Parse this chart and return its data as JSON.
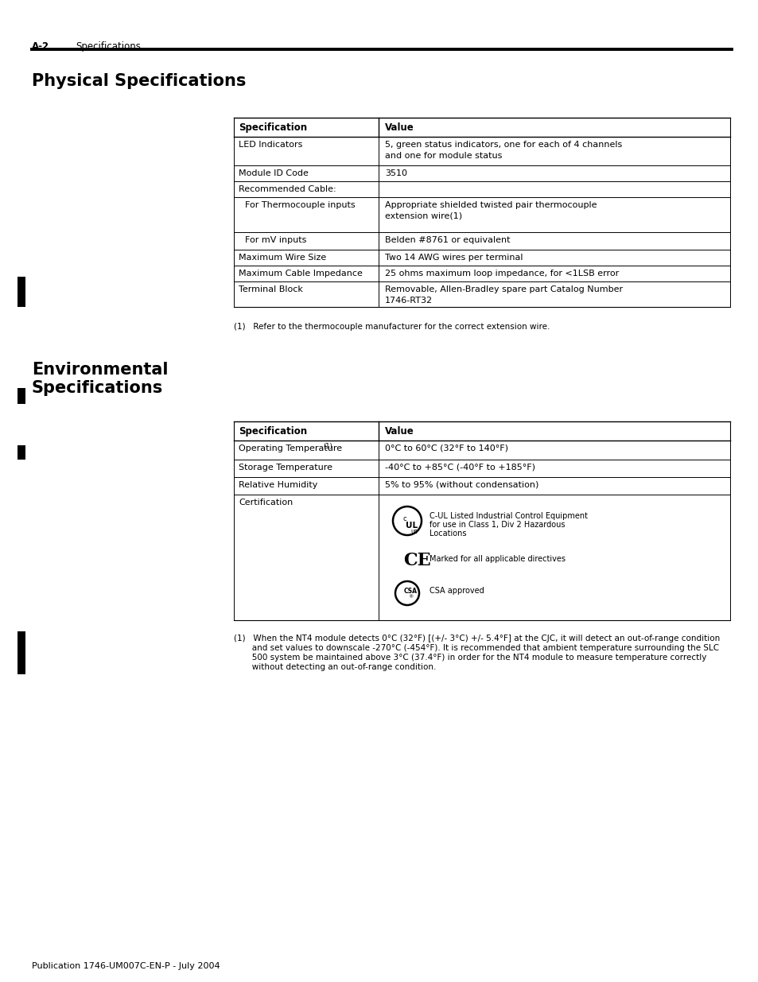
{
  "page_header_bold": "A-2",
  "page_header_normal": "Specifications",
  "section1_title": "Physical Specifications",
  "section2_title": "Environmental\nSpecifications",
  "footer": "Publication 1746-UM007C-EN-P - July 2004",
  "phys_table_rows": [
    [
      "LED Indicators",
      "5, green status indicators, one for each of 4 channels\nand one for module status",
      false
    ],
    [
      "Module ID Code",
      "3510",
      false
    ],
    [
      "Recommended Cable:",
      "",
      false
    ],
    [
      "For Thermocouple inputs",
      "Appropriate shielded twisted pair thermocouple\nextension wire(1)",
      true
    ],
    [
      "For mV inputs",
      "Belden #8761 or equivalent",
      true
    ],
    [
      "Maximum Wire Size",
      "Two 14 AWG wires per terminal",
      false
    ],
    [
      "Maximum Cable Impedance",
      "25 ohms maximum loop impedance, for <1LSB error",
      false
    ],
    [
      "Terminal Block",
      "Removable, Allen-Bradley spare part Catalog Number\n1746-RT32",
      false
    ]
  ],
  "phys_footnote": "(1)   Refer to the thermocouple manufacturer for the correct extension wire.",
  "env_table_rows": [
    [
      "Operating Temperature(1)",
      "0°C to 60°C (32°F to 140°F)",
      false
    ],
    [
      "Storage Temperature",
      "-40°C to +85°C (-40°F to +185°F)",
      false
    ],
    [
      "Relative Humidity",
      "5% to 95% (without condensation)",
      false
    ],
    [
      "Certification",
      "",
      false
    ]
  ],
  "env_footnote_line1": "(1)   When the NT4 module detects 0°C (32°F) [(+/- 3°C) +/- 5.4°F] at the CJC, it will detect an out-of-range condition",
  "env_footnote_line2": "       and set values to downscale -270°C (-454°F). It is recommended that ambient temperature surrounding the SLC",
  "env_footnote_line3": "       500 system be maintained above 3°C (37.4°F) in order for the NT4 module to measure temperature correctly",
  "env_footnote_line4": "       without detecting an out-of-range condition.",
  "cert_ul_line1": "C-UL Listed Industrial Control Equipment",
  "cert_ul_line2": "for use in Class 1, Div 2 Hazardous",
  "cert_ul_line3": "Locations",
  "cert_ce_text": "Marked for all applicable directives",
  "cert_csa_text": "CSA approved",
  "bg_color": "#ffffff",
  "margin_bar_color": "#000000"
}
